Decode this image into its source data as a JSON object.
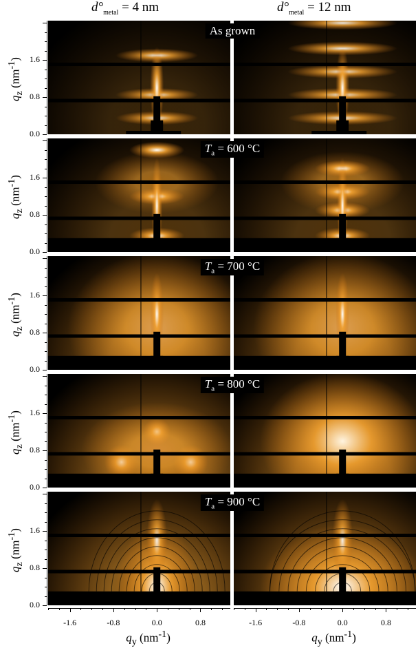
{
  "chart_data": {
    "type": "heatmap",
    "columns": [
      {
        "title_prefix": "d°",
        "title_sub": "metal",
        "title_value": "= 4 nm"
      },
      {
        "title_prefix": "d°",
        "title_sub": "metal",
        "title_value": "= 12 nm"
      }
    ],
    "rows": [
      {
        "label": "As grown",
        "label_italic": "",
        "label_sub": "",
        "label_rest": ""
      },
      {
        "label": "",
        "label_italic": "T",
        "label_sub": "a",
        "label_rest": " = 600 °C"
      },
      {
        "label": "",
        "label_italic": "T",
        "label_sub": "a",
        "label_rest": " = 700 °C"
      },
      {
        "label": "",
        "label_italic": "T",
        "label_sub": "a",
        "label_rest": " = 800 °C"
      },
      {
        "label": "",
        "label_italic": "T",
        "label_sub": "a",
        "label_rest": " = 900 °C"
      }
    ],
    "xaxis": {
      "symbol": "q",
      "sub": "y",
      "unit": " (nm",
      "sup": "-1",
      "close": ")",
      "ticks": [
        "-1.6",
        "-0.8",
        "0.0",
        "0.8"
      ],
      "tick_values": [
        -1.6,
        -0.8,
        0.0,
        0.8
      ],
      "range": [
        -2.0,
        1.35
      ]
    },
    "yaxis": {
      "symbol": "q",
      "sub": "z",
      "unit": " (nm",
      "sup": "-1",
      "close": ")",
      "ticks": [
        "0.0",
        "0.8",
        "1.6"
      ],
      "tick_values": [
        0.0,
        0.8,
        1.6
      ],
      "range": [
        0.0,
        2.45
      ]
    },
    "colormap": [
      "#000000",
      "#e8890f",
      "#ffffff"
    ],
    "grid": false
  }
}
